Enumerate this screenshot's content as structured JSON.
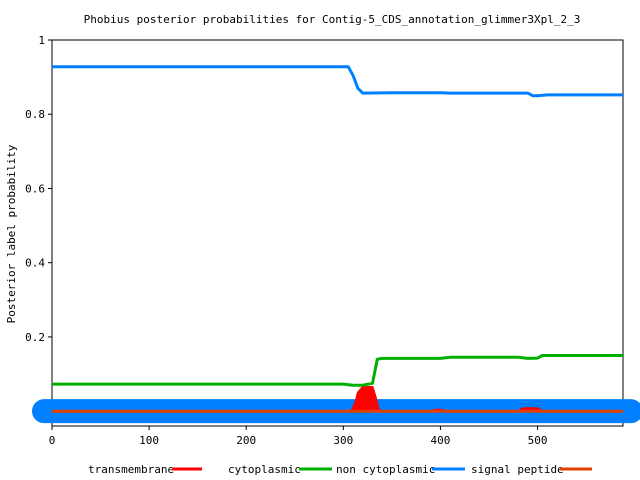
{
  "chart_data": {
    "type": "line",
    "title": "Phobius posterior probabilities for Contig-5_CDS_annotation_glimmer3Xpl_2_3",
    "xlabel": "",
    "ylabel": "Posterior label probability",
    "xlim": [
      0,
      588
    ],
    "ylim": [
      -0.04,
      1
    ],
    "xticks": [
      0,
      100,
      200,
      300,
      400,
      500
    ],
    "yticks": [
      0.2,
      0.4,
      0.6,
      0.8,
      1
    ],
    "ytick_labels": [
      "0.2",
      "0.4",
      "0.6",
      "0.8",
      "1"
    ],
    "grid": false,
    "legend_position": "bottom",
    "series": [
      {
        "name": "transmembrane",
        "color": "#ff0000",
        "style": "filled-area",
        "x": [
          0,
          308,
          312,
          315,
          320,
          330,
          333,
          337,
          390,
          395,
          400,
          405,
          480,
          485,
          490,
          500,
          505,
          588
        ],
        "y": [
          0.0,
          0.0,
          0.02,
          0.05,
          0.065,
          0.065,
          0.04,
          0.0,
          0.0,
          0.004,
          0.004,
          0.0,
          0.0,
          0.008,
          0.008,
          0.008,
          0.0,
          0.0
        ]
      },
      {
        "name": "cytoplasmic",
        "color": "#00b000",
        "style": "line",
        "x": [
          0,
          300,
          310,
          320,
          330,
          335,
          340,
          400,
          410,
          480,
          490,
          500,
          505,
          588
        ],
        "y": [
          0.073,
          0.073,
          0.07,
          0.07,
          0.075,
          0.14,
          0.142,
          0.142,
          0.145,
          0.145,
          0.142,
          0.143,
          0.15,
          0.15
        ]
      },
      {
        "name": "non cytoplasmic",
        "color": "#0080ff",
        "style": "line",
        "x": [
          0,
          305,
          310,
          315,
          320,
          350,
          400,
          410,
          490,
          495,
          500,
          510,
          588
        ],
        "y": [
          0.928,
          0.928,
          0.905,
          0.87,
          0.857,
          0.858,
          0.858,
          0.857,
          0.857,
          0.85,
          0.85,
          0.852,
          0.852
        ]
      },
      {
        "name": "signal peptide",
        "color": "#e04000",
        "style": "line",
        "x": [
          0,
          588
        ],
        "y": [
          0.0,
          0.0
        ]
      }
    ]
  }
}
